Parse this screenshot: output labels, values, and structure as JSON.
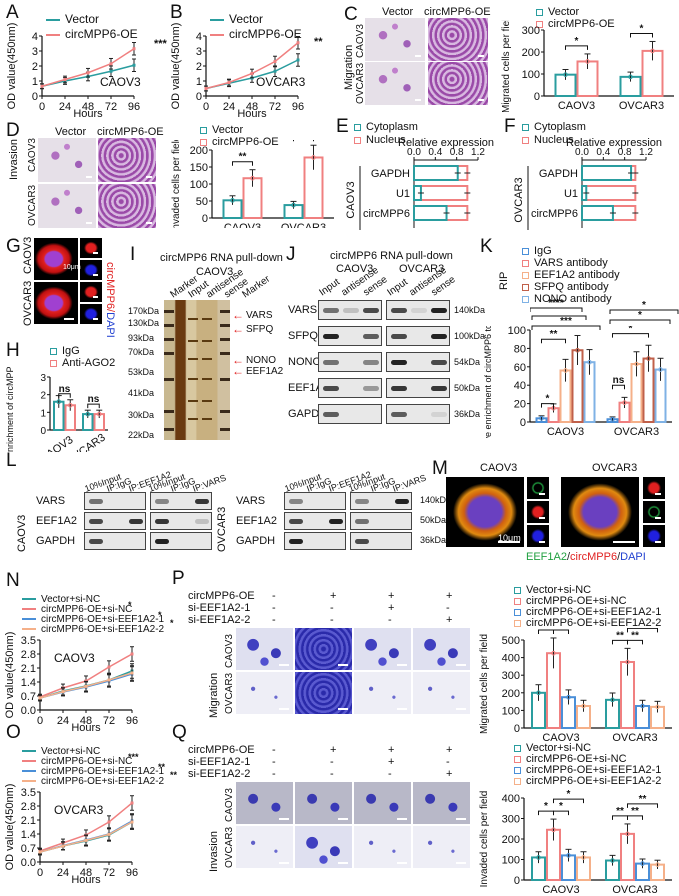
{
  "colors": {
    "teal": "#2a9d9f",
    "pink": "#f08080",
    "blue": "#4a8fd8",
    "peach": "#f5b089",
    "brown": "#c0604a",
    "lightblue": "#7fb2e5"
  },
  "panels": {
    "A": {
      "letter": "A",
      "cell": "CAOV3"
    },
    "B": {
      "letter": "B",
      "cell": "OVCAR3"
    },
    "C": {
      "letter": "C",
      "cols": [
        "Vector",
        "circMPP6-OE"
      ],
      "rows": [
        "CAOV3",
        "OVCAR3"
      ],
      "side": "Migration"
    },
    "D": {
      "letter": "D",
      "cols": [
        "Vector",
        "circMPP6-OE"
      ],
      "rows": [
        "CAOV3",
        "OVCAR3"
      ],
      "side": "Invasion"
    },
    "E": {
      "letter": "E",
      "cell": "CAOV3"
    },
    "F": {
      "letter": "F",
      "cell": "OVCAR3"
    },
    "G": {
      "letter": "G",
      "rows": [
        "CAOV3",
        "OVCAR3"
      ],
      "scale": "10μm",
      "side_red": "circMPP6",
      "side_blue": "DAPI"
    },
    "H": {
      "letter": "H"
    },
    "I": {
      "letter": "I",
      "title": "circMPP6 RNA pull-down",
      "cell": "CAOV3",
      "lanes": [
        "Marker",
        "Input",
        "antisense",
        "sense",
        "Marker"
      ],
      "markers": [
        "170kDa",
        "130kDa",
        "93kDa",
        "70kDa",
        "53kDa",
        "41kDa",
        "30kDa",
        "22kDa"
      ],
      "arrows": [
        "VARS",
        "SFPQ",
        "NONO",
        "EEF1A2"
      ]
    },
    "J": {
      "letter": "J",
      "title": "circMPP6 RNA pull-down",
      "groups": [
        "CAOV3",
        "OVCAR3"
      ],
      "lanes": [
        "Input",
        "antisense",
        "sense"
      ],
      "rows": [
        "VARS",
        "SFPQ",
        "NONO",
        "EEF1A2",
        "GAPDH"
      ],
      "sizes": [
        "140kDa",
        "100kDa",
        "54kDa",
        "50kDa",
        "36kDa"
      ]
    },
    "K": {
      "letter": "K",
      "rip": "RIP"
    },
    "L": {
      "letter": "L",
      "lanes_a": [
        "10%Input",
        "IP:IgG",
        "IP:EEF1A2"
      ],
      "lanes_b": [
        "10%Input",
        "IP:IgG",
        "IP:VARS"
      ],
      "cells": [
        "CAOV3",
        "OVCAR3"
      ],
      "rows": [
        "VARS",
        "EEF1A2",
        "GAPDH"
      ],
      "sizes": [
        "140kDa",
        "50kDa",
        "36kDa"
      ]
    },
    "M": {
      "letter": "M",
      "cells": [
        "CAOV3",
        "OVCAR3"
      ],
      "scale": "10μm",
      "caption_green": "EEF1A2",
      "caption_red": "circMPP6",
      "caption_blue": "DAPI"
    },
    "N": {
      "letter": "N",
      "cell": "CAOV3"
    },
    "O": {
      "letter": "O",
      "cell": "OVCAR3"
    },
    "P": {
      "letter": "P",
      "side": "Migration",
      "rows": [
        "CAOV3",
        "OVCAR3"
      ],
      "conds": [
        {
          "label": "circMPP6-OE",
          "v": [
            "-",
            "+",
            "+",
            "+"
          ]
        },
        {
          "label": "si-EEF1A2-1",
          "v": [
            "-",
            "-",
            "+",
            "-"
          ]
        },
        {
          "label": "si-EEF1A2-2",
          "v": [
            "-",
            "-",
            "-",
            "+"
          ]
        }
      ]
    },
    "Q": {
      "letter": "Q",
      "side": "Invasion",
      "rows": [
        "CAOV3",
        "OVCAR3"
      ],
      "conds": [
        {
          "label": "circMPP6-OE",
          "v": [
            "-",
            "+",
            "+",
            "+"
          ]
        },
        {
          "label": "si-EEF1A2-1",
          "v": [
            "-",
            "-",
            "+",
            "-"
          ]
        },
        {
          "label": "si-EEF1A2-2",
          "v": [
            "-",
            "-",
            "-",
            "+"
          ]
        }
      ]
    }
  },
  "chart_data": [
    {
      "id": "A",
      "type": "line",
      "title": "CAOV3",
      "xlabel": "Hours",
      "ylabel": "OD value(450nm)",
      "x": [
        0,
        24,
        48,
        72,
        96
      ],
      "ylim": [
        0,
        4
      ],
      "yticks": [
        0,
        1,
        2,
        3,
        4
      ],
      "series": [
        {
          "name": "Vector",
          "values": [
            0.65,
            1.0,
            1.3,
            1.65,
            2.05
          ]
        },
        {
          "name": "circMPP6-OE",
          "values": [
            0.65,
            1.1,
            1.55,
            2.15,
            3.15
          ]
        }
      ],
      "annotation": "***"
    },
    {
      "id": "B",
      "type": "line",
      "title": "OVCAR3",
      "xlabel": "Hours",
      "ylabel": "OD value(450nm)",
      "x": [
        0,
        24,
        48,
        72,
        96
      ],
      "ylim": [
        0,
        4
      ],
      "yticks": [
        0,
        1,
        2,
        3,
        4
      ],
      "series": [
        {
          "name": "Vector",
          "values": [
            0.5,
            0.85,
            1.2,
            1.65,
            2.4
          ]
        },
        {
          "name": "circMPP6-OE",
          "values": [
            0.5,
            0.9,
            1.5,
            2.3,
            3.55
          ]
        }
      ],
      "annotation": "**"
    },
    {
      "id": "C",
      "type": "bar",
      "ylabel": "Migrated cells per field",
      "categories": [
        "CAOV3",
        "OVCAR3"
      ],
      "ylim": [
        0,
        300
      ],
      "yticks": [
        0,
        100,
        200,
        300
      ],
      "series": [
        {
          "name": "Vector",
          "values": [
            97,
            87
          ]
        },
        {
          "name": "circMPP6-OE",
          "values": [
            157,
            205
          ]
        }
      ],
      "annotations": [
        "*",
        "*"
      ]
    },
    {
      "id": "D",
      "type": "bar",
      "ylabel": "Invaded cells per field",
      "categories": [
        "CAOV3",
        "OVCAR3"
      ],
      "ylim": [
        0,
        200
      ],
      "yticks": [
        0,
        50,
        100,
        150,
        200
      ],
      "series": [
        {
          "name": "Vector",
          "values": [
            52,
            38
          ]
        },
        {
          "name": "circMPP6-OE",
          "values": [
            117,
            178
          ]
        }
      ],
      "annotations": [
        "**",
        "***"
      ]
    },
    {
      "id": "E",
      "type": "bar",
      "orientation": "horizontal",
      "stacked": true,
      "xlabel": "Relative expression",
      "cell": "CAOV3",
      "categories": [
        "GAPDH",
        "U1",
        "circMPP6"
      ],
      "xlim": [
        0,
        1.2
      ],
      "xticks": [
        "0.0",
        "0.4",
        "0.8",
        "1.2"
      ],
      "series": [
        {
          "name": "Cytoplasm",
          "values": [
            0.82,
            0.13,
            0.61
          ]
        },
        {
          "name": "Nucleus",
          "values": [
            1.0,
            1.0,
            1.0
          ]
        }
      ]
    },
    {
      "id": "F",
      "type": "bar",
      "orientation": "horizontal",
      "stacked": true,
      "xlabel": "Relative expression",
      "cell": "OVCAR3",
      "categories": [
        "GAPDH",
        "U1",
        "circMPP6"
      ],
      "xlim": [
        0,
        1.2
      ],
      "xticks": [
        "0.0",
        "0.4",
        "0.8",
        "1.2"
      ],
      "series": [
        {
          "name": "Cytoplasm",
          "values": [
            0.92,
            0.08,
            0.58
          ]
        },
        {
          "name": "Nucleus",
          "values": [
            1.0,
            1.0,
            1.0
          ]
        }
      ]
    },
    {
      "id": "H",
      "type": "bar",
      "ylabel": "Relative enrichment of circMPP6 to Input(%)",
      "categories": [
        "CAOV3",
        "OVCAR3"
      ],
      "ylim": [
        0,
        3
      ],
      "yticks": [
        0,
        1,
        2,
        3
      ],
      "series": [
        {
          "name": "IgG",
          "values": [
            1.6,
            0.9
          ]
        },
        {
          "name": "Anti-AGO2",
          "values": [
            1.4,
            0.9
          ]
        }
      ],
      "annotations": [
        "ns",
        "ns"
      ]
    },
    {
      "id": "K",
      "type": "bar",
      "ylabel": "Relative enrichment of circMPP6 to Input(%)",
      "categories": [
        "CAOV3",
        "OVCAR3"
      ],
      "ylim": [
        0,
        100
      ],
      "yticks": [
        0,
        20,
        40,
        60,
        80,
        100
      ],
      "series": [
        {
          "name": "IgG",
          "values": [
            4,
            3
          ]
        },
        {
          "name": "VARS antibody",
          "values": [
            15,
            21
          ]
        },
        {
          "name": "EEF1A2 antibody",
          "values": [
            56,
            63
          ]
        },
        {
          "name": "SFPQ antibody",
          "values": [
            78,
            69
          ]
        },
        {
          "name": "NONO antibody",
          "values": [
            65,
            57
          ]
        }
      ],
      "annotations_caov3": [
        "*",
        "**",
        "***",
        "****"
      ],
      "annotations_ovcar3": [
        "ns",
        "*",
        "*",
        "*"
      ]
    },
    {
      "id": "N",
      "type": "line",
      "title": "CAOV3",
      "xlabel": "Hours",
      "ylabel": "OD value(450nm)",
      "x": [
        0,
        24,
        48,
        72,
        96
      ],
      "ylim": [
        0,
        3.5
      ],
      "yticks": [
        "0.0",
        "0.7",
        "1.4",
        "2.1",
        "2.8",
        "3.5"
      ],
      "series": [
        {
          "name": "Vector+si-NC",
          "values": [
            0.6,
            0.95,
            1.2,
            1.5,
            1.95
          ]
        },
        {
          "name": "circMPP6-OE+si-NC",
          "values": [
            0.65,
            1.1,
            1.45,
            2.15,
            2.8
          ]
        },
        {
          "name": "circMPP6-OE+si-EEF1A2-1",
          "values": [
            0.6,
            0.9,
            1.15,
            1.45,
            1.8
          ]
        },
        {
          "name": "circMPP6-OE+si-EEF1A2-2",
          "values": [
            0.6,
            0.92,
            1.18,
            1.5,
            1.85
          ]
        }
      ],
      "annotations": [
        "*",
        "*",
        "*"
      ]
    },
    {
      "id": "O",
      "type": "line",
      "title": "OVCAR3",
      "xlabel": "Hours",
      "ylabel": "OD value(450nm)",
      "x": [
        0,
        24,
        48,
        72,
        96
      ],
      "ylim": [
        0,
        3.5
      ],
      "yticks": [
        "0.0",
        "0.7",
        "1.4",
        "2.1",
        "2.8",
        "3.5"
      ],
      "series": [
        {
          "name": "Vector+si-NC",
          "values": [
            0.5,
            0.8,
            1.05,
            1.35,
            2.0
          ]
        },
        {
          "name": "circMPP6-OE+si-NC",
          "values": [
            0.55,
            0.95,
            1.35,
            2.0,
            2.95
          ]
        },
        {
          "name": "circMPP6-OE+si-EEF1A2-1",
          "values": [
            0.5,
            0.82,
            1.1,
            1.4,
            2.05
          ]
        },
        {
          "name": "circMPP6-OE+si-EEF1A2-2",
          "values": [
            0.5,
            0.8,
            1.08,
            1.38,
            2.0
          ]
        }
      ],
      "annotations": [
        "***",
        "**",
        "**"
      ]
    },
    {
      "id": "P",
      "type": "bar",
      "ylabel": "Migrated cells per field",
      "categories": [
        "CAOV3",
        "OVCAR3"
      ],
      "ylim": [
        0,
        500
      ],
      "yticks": [
        0,
        100,
        200,
        300,
        400,
        500
      ],
      "series": [
        {
          "name": "Vector+si-NC",
          "values": [
            200,
            160
          ]
        },
        {
          "name": "circMPP6-OE+si-NC",
          "values": [
            425,
            375
          ]
        },
        {
          "name": "circMPP6-OE+si-EEF1A2-1",
          "values": [
            175,
            125
          ]
        },
        {
          "name": "circMPP6-OE+si-EEF1A2-2",
          "values": [
            125,
            120
          ]
        }
      ],
      "annotations_caov3": [
        "**",
        "*",
        "**"
      ],
      "annotations_ovcar3": [
        "**",
        "**",
        "***"
      ]
    },
    {
      "id": "Q",
      "type": "bar",
      "ylabel": "Invaded cells per field",
      "categories": [
        "CAOV3",
        "OVCAR3"
      ],
      "ylim": [
        0,
        400
      ],
      "yticks": [
        0,
        100,
        200,
        300,
        400
      ],
      "series": [
        {
          "name": "Vector+si-NC",
          "values": [
            110,
            95
          ]
        },
        {
          "name": "circMPP6-OE+si-NC",
          "values": [
            245,
            225
          ]
        },
        {
          "name": "circMPP6-OE+si-EEF1A2-1",
          "values": [
            120,
            80
          ]
        },
        {
          "name": "circMPP6-OE+si-EEF1A2-2",
          "values": [
            110,
            75
          ]
        }
      ],
      "annotations_caov3": [
        "*",
        "*",
        "*"
      ],
      "annotations_ovcar3": [
        "**",
        "**",
        "**"
      ]
    }
  ]
}
